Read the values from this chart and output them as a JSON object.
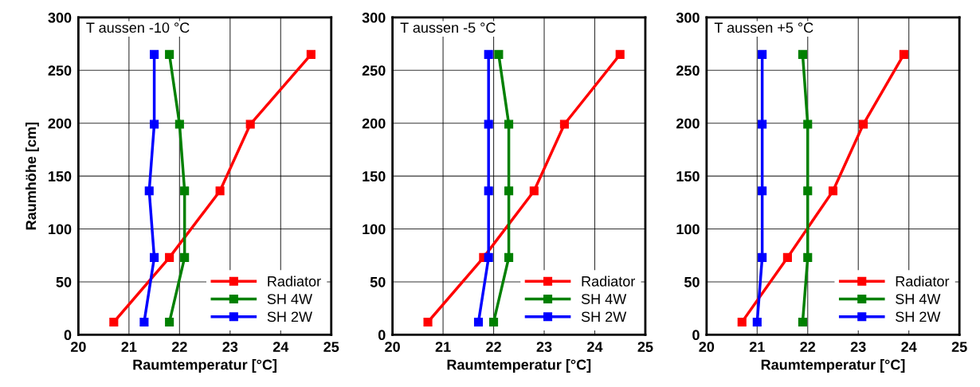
{
  "chart_data": [
    {
      "type": "line",
      "title": "T aussen -10 °C",
      "xlabel": "Raumtemperatur [°C]",
      "ylabel": "Raumhöhe [cm]",
      "xlim": [
        20,
        25
      ],
      "xticks": [
        20,
        21,
        22,
        23,
        24,
        25
      ],
      "ylim": [
        0,
        300
      ],
      "yticks": [
        0,
        50,
        100,
        150,
        200,
        250,
        300
      ],
      "grid": true,
      "legend": "bottom right",
      "marker": "square",
      "line_style": "solid",
      "series": [
        {
          "name": "Radiator",
          "color": "#ff0000",
          "x": [
            20.7,
            21.8,
            22.8,
            23.4,
            24.6
          ],
          "values": [
            12,
            73,
            136,
            199,
            265
          ]
        },
        {
          "name": "SH 4W",
          "color": "#008000",
          "x": [
            21.8,
            22.1,
            22.1,
            22.0,
            21.8
          ],
          "values": [
            12,
            73,
            136,
            199,
            265
          ]
        },
        {
          "name": "SH 2W",
          "color": "#0000ff",
          "x": [
            21.3,
            21.5,
            21.4,
            21.5,
            21.5
          ],
          "values": [
            12,
            73,
            136,
            199,
            265
          ]
        }
      ]
    },
    {
      "type": "line",
      "title": "T aussen -5 °C",
      "xlabel": "Raumtemperatur [°C]",
      "xlim": [
        20,
        25
      ],
      "xticks": [
        20,
        21,
        22,
        23,
        24,
        25
      ],
      "ylim": [
        0,
        300
      ],
      "yticks": [
        0,
        50,
        100,
        150,
        200,
        250,
        300
      ],
      "grid": true,
      "legend": "bottom right",
      "marker": "square",
      "line_style": "solid",
      "series": [
        {
          "name": "Radiator",
          "color": "#ff0000",
          "x": [
            20.7,
            21.8,
            22.8,
            23.4,
            24.5
          ],
          "values": [
            12,
            73,
            136,
            199,
            265
          ]
        },
        {
          "name": "SH 4W",
          "color": "#008000",
          "x": [
            22.0,
            22.3,
            22.3,
            22.3,
            22.1
          ],
          "values": [
            12,
            73,
            136,
            199,
            265
          ]
        },
        {
          "name": "SH 2W",
          "color": "#0000ff",
          "x": [
            21.7,
            21.9,
            21.9,
            21.9,
            21.9
          ],
          "values": [
            12,
            73,
            136,
            199,
            265
          ]
        }
      ]
    },
    {
      "type": "line",
      "title": "T aussen +5 °C",
      "xlabel": "Raumtemperatur [°C]",
      "xlim": [
        20,
        25
      ],
      "xticks": [
        20,
        21,
        22,
        23,
        24,
        25
      ],
      "ylim": [
        0,
        300
      ],
      "yticks": [
        0,
        50,
        100,
        150,
        200,
        250,
        300
      ],
      "grid": true,
      "legend": "bottom right",
      "marker": "square",
      "line_style": "solid",
      "series": [
        {
          "name": "Radiator",
          "color": "#ff0000",
          "x": [
            20.7,
            21.6,
            22.5,
            23.1,
            23.9
          ],
          "values": [
            12,
            73,
            136,
            199,
            265
          ]
        },
        {
          "name": "SH 4W",
          "color": "#008000",
          "x": [
            21.9,
            22.0,
            22.0,
            22.0,
            21.9
          ],
          "values": [
            12,
            73,
            136,
            199,
            265
          ]
        },
        {
          "name": "SH 2W",
          "color": "#0000ff",
          "x": [
            21.0,
            21.1,
            21.1,
            21.1,
            21.1
          ],
          "values": [
            12,
            73,
            136,
            199,
            265
          ]
        }
      ]
    }
  ]
}
